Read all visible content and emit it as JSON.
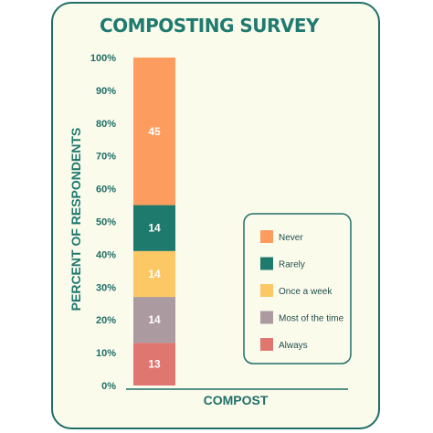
{
  "chart_data": {
    "type": "bar",
    "stacked": true,
    "title": "COMPOSTING SURVEY",
    "xlabel": "",
    "ylabel": "PERCENT OF RESPONDENTS",
    "categories": [
      "COMPOST"
    ],
    "ylim": [
      0,
      100
    ],
    "yticks": [
      "0%",
      "10%",
      "20%",
      "30%",
      "40%",
      "50%",
      "60%",
      "70%",
      "80%",
      "90%",
      "100%"
    ],
    "grid": false,
    "legend_position": "right",
    "series": [
      {
        "name": "Always",
        "values": [
          13
        ],
        "color": "#e07670"
      },
      {
        "name": "Most of the time",
        "values": [
          14
        ],
        "color": "#ab9a9f"
      },
      {
        "name": "Once a week",
        "values": [
          14
        ],
        "color": "#fcc866"
      },
      {
        "name": "Rarely",
        "values": [
          14
        ],
        "color": "#1e7a6c"
      },
      {
        "name": "Never",
        "values": [
          45
        ],
        "color": "#fd9c5f"
      }
    ],
    "legend_order": [
      "Never",
      "Rarely",
      "Once a week",
      "Most of the time",
      "Always"
    ]
  }
}
